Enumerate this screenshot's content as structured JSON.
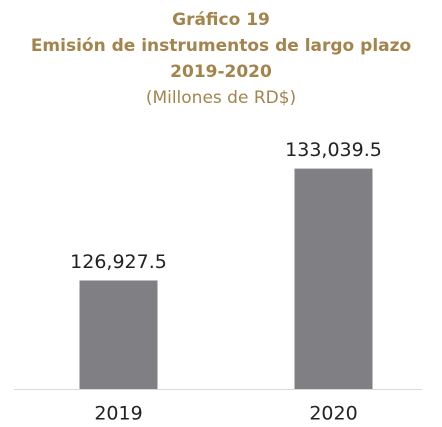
{
  "chart_data": {
    "type": "bar",
    "title": [
      "Gráfico 19",
      "Emisión de instrumentos de largo plazo",
      "2019-2020"
    ],
    "subtitle": "(Millones de RD$)",
    "categories": [
      "2019",
      "2020"
    ],
    "values": [
      126927.5,
      133039.5
    ],
    "value_labels": [
      "126,927.5",
      "133,039.5"
    ],
    "color": "#808084",
    "ylim": [
      121000,
      134000
    ]
  }
}
